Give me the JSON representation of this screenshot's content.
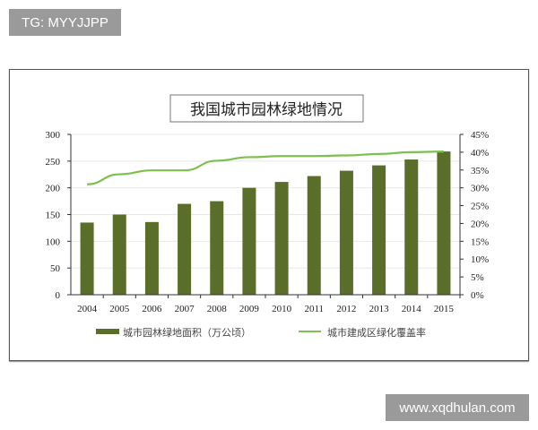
{
  "watermarks": {
    "top_left": "TG: MYYJJPP",
    "bottom_right": "www.xqdhulan.com"
  },
  "chart_data": {
    "type": "bar+line",
    "title": "我国城市园林绿地情况",
    "categories": [
      "2004",
      "2005",
      "2006",
      "2007",
      "2008",
      "2009",
      "2010",
      "2011",
      "2012",
      "2013",
      "2014",
      "2015"
    ],
    "series": [
      {
        "name": "城市园林绿地面积（万公顷）",
        "type": "bar",
        "axis": "left",
        "color": "#5a6e2a",
        "values": [
          135,
          150,
          136,
          170,
          175,
          200,
          211,
          222,
          232,
          242,
          253,
          268
        ]
      },
      {
        "name": "城市建成区绿化覆盖率",
        "type": "line",
        "axis": "right",
        "color": "#7cc04e",
        "values": [
          31.0,
          33.8,
          34.9,
          34.9,
          37.6,
          38.6,
          38.9,
          38.9,
          39.1,
          39.5,
          40.0,
          40.2
        ]
      }
    ],
    "left_axis": {
      "ylim": [
        0,
        300
      ],
      "ticks": [
        "0",
        "50",
        "100",
        "150",
        "200",
        "250",
        "300"
      ]
    },
    "right_axis": {
      "ylim": [
        0,
        45
      ],
      "ticks": [
        "0%",
        "5%",
        "10%",
        "15%",
        "20%",
        "25%",
        "30%",
        "35%",
        "40%",
        "45%"
      ]
    },
    "grid": true,
    "legend_placement": "bottom"
  }
}
